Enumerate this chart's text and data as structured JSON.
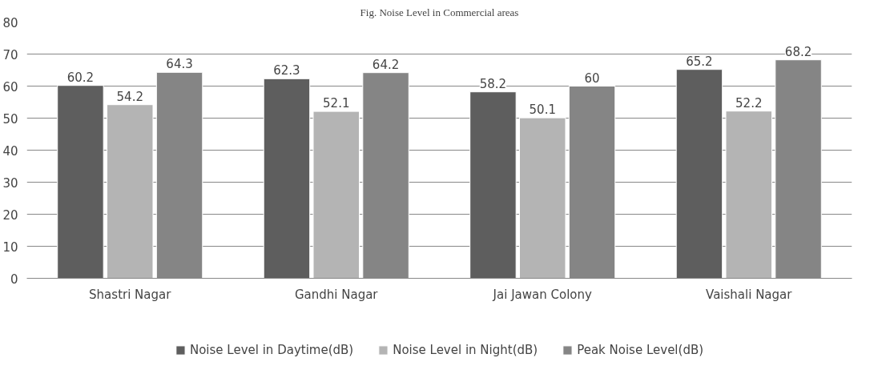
{
  "chart_data": {
    "type": "bar",
    "title": "Fig. Noise Level in Commercial areas",
    "categories": [
      "Shastri Nagar",
      "Gandhi Nagar",
      "Jai Jawan Colony",
      "Vaishali Nagar"
    ],
    "series": [
      {
        "name": "Noise Level in Daytime(dB)",
        "color": "#5e5e5e",
        "values": [
          60.2,
          62.3,
          58.2,
          65.2
        ]
      },
      {
        "name": "Noise Level in Night(dB)",
        "color": "#b4b4b4",
        "values": [
          54.2,
          52.1,
          50.1,
          52.2
        ]
      },
      {
        "name": "Peak Noise Level(dB)",
        "color": "#858585",
        "values": [
          64.3,
          64.2,
          60,
          68.2
        ]
      }
    ],
    "ylim": [
      0,
      80
    ],
    "yticks": [
      0,
      10,
      20,
      30,
      40,
      50,
      60,
      70,
      80
    ],
    "grid": "y",
    "legend": "bottom",
    "data_labels": true
  }
}
